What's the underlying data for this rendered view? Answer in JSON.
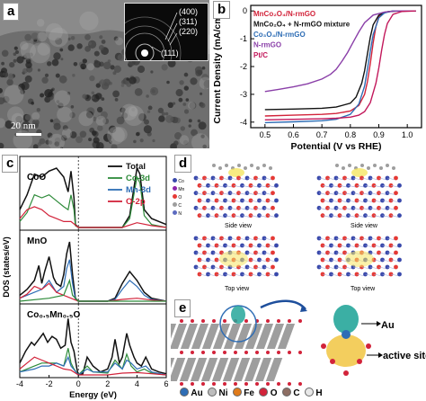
{
  "panel_a": {
    "label": "a",
    "scale_bar": "20 nm",
    "diffraction_rings": [
      "(400)",
      "(311)",
      "(220)",
      "(111)"
    ]
  },
  "panel_b": {
    "label": "b",
    "chart_data": {
      "type": "line",
      "xlabel": "Potential (V vs RHE)",
      "ylabel": "Current Density (mA/cm²)",
      "xlim": [
        0.45,
        1.05
      ],
      "ylim": [
        -4.2,
        0.2
      ],
      "xticks": [
        "0.5",
        "0.6",
        "0.7",
        "0.8",
        "0.9",
        "1.0"
      ],
      "yticks": [
        "0",
        "-1",
        "-2",
        "-3",
        "-4"
      ],
      "legend_position": "top-left",
      "series": [
        {
          "name": "MnCo₂O₄/N-rmGO",
          "color": "#d2233a",
          "x": [
            0.5,
            0.6,
            0.7,
            0.75,
            0.8,
            0.83,
            0.85,
            0.86,
            0.87,
            0.88,
            0.89,
            0.9,
            0.92,
            0.95,
            1.0,
            1.03
          ],
          "y": [
            -3.78,
            -3.75,
            -3.72,
            -3.69,
            -3.6,
            -3.4,
            -3.0,
            -2.55,
            -1.9,
            -1.15,
            -0.55,
            -0.2,
            -0.05,
            0,
            0,
            0
          ]
        },
        {
          "name": "MnCo₂O₄ + N-rmGO mixture",
          "color": "#111111",
          "x": [
            0.5,
            0.6,
            0.7,
            0.75,
            0.8,
            0.82,
            0.84,
            0.85,
            0.86,
            0.87,
            0.88,
            0.9,
            0.93,
            0.97,
            1.03
          ],
          "y": [
            -3.55,
            -3.53,
            -3.5,
            -3.46,
            -3.32,
            -3.1,
            -2.6,
            -2.15,
            -1.55,
            -0.95,
            -0.5,
            -0.15,
            -0.03,
            0,
            0
          ]
        },
        {
          "name": "Co₃O₄/N-rmGO",
          "color": "#2e6db5",
          "x": [
            0.5,
            0.6,
            0.7,
            0.75,
            0.8,
            0.83,
            0.85,
            0.86,
            0.87,
            0.88,
            0.9,
            0.92,
            0.95,
            1.0,
            1.03
          ],
          "y": [
            -4.02,
            -3.99,
            -3.95,
            -3.9,
            -3.72,
            -3.35,
            -2.7,
            -2.1,
            -1.45,
            -0.85,
            -0.25,
            -0.07,
            0,
            0,
            0
          ]
        },
        {
          "name": "N-rmGO",
          "color": "#8a3fa8",
          "x": [
            0.5,
            0.55,
            0.6,
            0.65,
            0.7,
            0.73,
            0.75,
            0.77,
            0.79,
            0.81,
            0.83,
            0.85,
            0.88,
            0.92,
            0.96,
            1.03
          ],
          "y": [
            -2.9,
            -2.82,
            -2.73,
            -2.62,
            -2.45,
            -2.28,
            -2.1,
            -1.82,
            -1.5,
            -1.12,
            -0.75,
            -0.42,
            -0.15,
            -0.04,
            0,
            0
          ]
        },
        {
          "name": "Pt/C",
          "color": "#c2185b",
          "x": [
            0.5,
            0.6,
            0.7,
            0.75,
            0.8,
            0.83,
            0.85,
            0.87,
            0.89,
            0.9,
            0.91,
            0.92,
            0.93,
            0.95,
            0.98,
            1.03
          ],
          "y": [
            -3.92,
            -3.9,
            -3.88,
            -3.86,
            -3.82,
            -3.75,
            -3.62,
            -3.3,
            -2.6,
            -2.05,
            -1.4,
            -0.85,
            -0.45,
            -0.12,
            -0.02,
            0
          ]
        }
      ]
    }
  },
  "panel_c": {
    "label": "c",
    "chart_data": {
      "type": "line",
      "xlabel": "Energy (eV)",
      "ylabel": "DOS (states/eV)",
      "xlim": [
        -4,
        6
      ],
      "xticks": [
        "-4",
        "-2",
        "0",
        "2",
        "4",
        "6"
      ],
      "legend": [
        {
          "name": "Total",
          "color": "#111111"
        },
        {
          "name": "Co-3d",
          "color": "#2e8b3a"
        },
        {
          "name": "Mn-3d",
          "color": "#2e6db5"
        },
        {
          "name": "O-2p",
          "color": "#d2233a"
        }
      ],
      "subplots": [
        {
          "title": "CoO",
          "series": [
            {
              "name": "Total",
              "color": "#111111",
              "x": [
                -4,
                -3.5,
                -3,
                -2.5,
                -2,
                -1.5,
                -1,
                -0.7,
                -0.5,
                -0.3,
                -0.2,
                0,
                0.5,
                1,
                2,
                3,
                3.5,
                4,
                4.2,
                4.5,
                5,
                6
              ],
              "y": [
                0.3,
                0.55,
                0.9,
                0.85,
                0.95,
                1.0,
                0.85,
                0.6,
                0.95,
                0.5,
                0.05,
                0,
                0,
                0,
                0,
                0,
                0.2,
                1.0,
                0.9,
                0.3,
                0.15,
                0.05
              ]
            },
            {
              "name": "Co-3d",
              "color": "#2e8b3a",
              "x": [
                -4,
                -3.5,
                -3,
                -2.5,
                -2,
                -1.5,
                -1,
                -0.7,
                -0.5,
                -0.3,
                -0.2,
                0,
                1,
                2,
                3,
                3.5,
                4,
                4.2,
                4.5,
                5,
                6
              ],
              "y": [
                0.1,
                0.25,
                0.55,
                0.5,
                0.55,
                0.45,
                0.35,
                0.3,
                0.55,
                0.3,
                0.03,
                0,
                0,
                0,
                0,
                0.15,
                0.85,
                0.75,
                0.2,
                0.05,
                0
              ]
            },
            {
              "name": "O-2p",
              "color": "#d2233a",
              "x": [
                -4,
                -3.5,
                -3,
                -2.5,
                -2,
                -1.5,
                -1,
                -0.5,
                0,
                1,
                2,
                3,
                4,
                5,
                6
              ],
              "y": [
                0.15,
                0.3,
                0.35,
                0.3,
                0.2,
                0.15,
                0.1,
                0.1,
                0,
                0,
                0,
                0,
                0.08,
                0.03,
                0
              ]
            }
          ]
        },
        {
          "title": "MnO",
          "series": [
            {
              "name": "Total",
              "color": "#111111",
              "x": [
                -4,
                -3.5,
                -3,
                -2.7,
                -2.5,
                -2.3,
                -2,
                -1.7,
                -1.5,
                -1.2,
                -1,
                -0.8,
                -0.6,
                -0.4,
                -0.2,
                0,
                1,
                2,
                2.5,
                3,
                3.5,
                4,
                4.5,
                5,
                6
              ],
              "y": [
                0.1,
                0.2,
                0.35,
                0.6,
                0.3,
                0.5,
                0.75,
                0.4,
                0.3,
                0.25,
                0.45,
                0.8,
                1.0,
                0.45,
                0.05,
                0,
                0,
                0,
                0.05,
                0.3,
                0.5,
                0.35,
                0.15,
                0.05,
                0
              ]
            },
            {
              "name": "Mn-3d",
              "color": "#2e6db5",
              "x": [
                -4,
                -3,
                -2.5,
                -2,
                -1.5,
                -1,
                -0.8,
                -0.6,
                -0.4,
                -0.2,
                0,
                2,
                2.5,
                3,
                3.5,
                4,
                4.5,
                5,
                6
              ],
              "y": [
                0.05,
                0.15,
                0.2,
                0.35,
                0.15,
                0.25,
                0.55,
                0.7,
                0.3,
                0.03,
                0,
                0,
                0.03,
                0.2,
                0.35,
                0.25,
                0.1,
                0.03,
                0
              ]
            },
            {
              "name": "O-2p",
              "color": "#d2233a",
              "x": [
                -4,
                -3.5,
                -3,
                -2.5,
                -2,
                -1.5,
                -1,
                -0.5,
                0,
                2,
                3,
                4,
                5,
                6
              ],
              "y": [
                0.05,
                0.12,
                0.25,
                0.2,
                0.3,
                0.15,
                0.1,
                0.05,
                0,
                0,
                0.03,
                0.05,
                0.02,
                0
              ]
            },
            {
              "name": "Co-3d",
              "color": "#2e8b3a",
              "x": [
                -4,
                -2,
                -1,
                -0.6,
                -0.4,
                0,
                6
              ],
              "y": [
                0,
                0.05,
                0.1,
                0.35,
                0.1,
                0,
                0
              ]
            }
          ]
        },
        {
          "title": "Co₀.₅Mn₀.₅O",
          "series": [
            {
              "name": "Total",
              "color": "#111111",
              "x": [
                -4,
                -3.6,
                -3.2,
                -3,
                -2.7,
                -2.4,
                -2.1,
                -1.8,
                -1.5,
                -1.2,
                -0.9,
                -0.7,
                -0.5,
                -0.3,
                -0.1,
                0,
                0.3,
                0.6,
                1,
                1.5,
                2,
                2.3,
                2.5,
                2.8,
                3,
                3.3,
                3.5,
                3.8,
                4,
                4.3,
                4.6,
                5,
                5.5,
                6
              ],
              "y": [
                0.2,
                0.4,
                0.55,
                0.5,
                0.6,
                0.7,
                0.55,
                0.65,
                0.6,
                0.45,
                0.5,
                0.95,
                0.55,
                0.4,
                0.1,
                0,
                0.02,
                0.3,
                0.15,
                0.05,
                0.1,
                0.3,
                0.6,
                0.2,
                0.3,
                0.7,
                0.5,
                0.3,
                0.2,
                0.15,
                0.3,
                0.1,
                0.05,
                0.02
              ]
            },
            {
              "name": "Co-3d",
              "color": "#2e8b3a",
              "x": [
                -4,
                -3,
                -2.5,
                -2,
                -1.5,
                -1,
                -0.7,
                -0.5,
                -0.3,
                0,
                0.6,
                1,
                2,
                2.5,
                3,
                3.3,
                3.6,
                4,
                4.5,
                5,
                6
              ],
              "y": [
                0.05,
                0.15,
                0.2,
                0.2,
                0.2,
                0.15,
                0.45,
                0.2,
                0.1,
                0,
                0.15,
                0.05,
                0.03,
                0.25,
                0.1,
                0.35,
                0.15,
                0.05,
                0.1,
                0.03,
                0
              ]
            },
            {
              "name": "Mn-3d",
              "color": "#2e6db5",
              "x": [
                -4,
                -3,
                -2.5,
                -2,
                -1.5,
                -1,
                -0.7,
                -0.5,
                0,
                0.6,
                1,
                2,
                2.5,
                3,
                3.3,
                3.6,
                4,
                4.6,
                5,
                6
              ],
              "y": [
                0.05,
                0.1,
                0.15,
                0.15,
                0.2,
                0.15,
                0.3,
                0.15,
                0,
                0.1,
                0.05,
                0.05,
                0.2,
                0.1,
                0.25,
                0.2,
                0.1,
                0.15,
                0.05,
                0
              ]
            },
            {
              "name": "O-2p",
              "color": "#d2233a",
              "x": [
                -4,
                -3.5,
                -3,
                -2.5,
                -2,
                -1.5,
                -1,
                -0.5,
                0,
                2,
                3,
                4,
                5,
                6
              ],
              "y": [
                0.1,
                0.2,
                0.3,
                0.25,
                0.2,
                0.15,
                0.1,
                0.08,
                0,
                0,
                0.03,
                0.04,
                0.02,
                0
              ]
            }
          ]
        }
      ]
    }
  },
  "panel_d": {
    "label": "d",
    "views": [
      "Side view",
      "Side view",
      "Top view",
      "Top view"
    ],
    "atom_legend": [
      "Co",
      "Mn",
      "O",
      "C",
      "N"
    ]
  },
  "panel_e": {
    "label": "e",
    "annotations": [
      "Au",
      "active sites"
    ],
    "atom_legend": [
      {
        "symbol": "Au",
        "color": "#2e6db5"
      },
      {
        "symbol": "Ni",
        "color": "#bdbdbd"
      },
      {
        "symbol": "Fe",
        "color": "#e07b1a"
      },
      {
        "symbol": "O",
        "color": "#d2233a"
      },
      {
        "symbol": "C",
        "color": "#8d6e63"
      },
      {
        "symbol": "H",
        "color": "#e8e8e8"
      }
    ]
  },
  "colors": {
    "red": "#d2233a",
    "blue": "#2e6db5",
    "green": "#2e8b3a",
    "purple": "#8a3fa8",
    "magenta": "#c2185b"
  }
}
